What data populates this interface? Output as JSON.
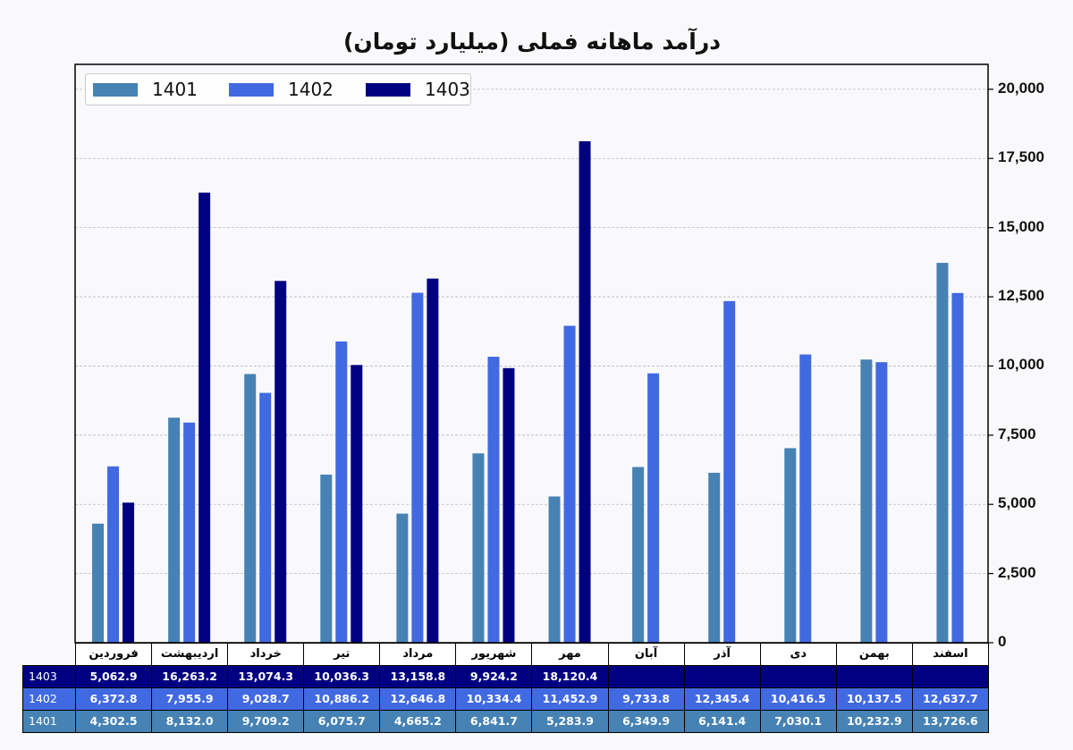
{
  "chart_data": {
    "type": "bar",
    "title": "درآمد ماهانه فملی (میلیارد تومان)",
    "categories": [
      "فروردین",
      "اردیبهشت",
      "خرداد",
      "تیر",
      "مرداد",
      "شهریور",
      "مهر",
      "آبان",
      "آذر",
      "دی",
      "بهمن",
      "اسفند"
    ],
    "series": [
      {
        "name": "1401",
        "color": "#4682b4",
        "values": [
          4302.5,
          8132.0,
          9709.2,
          6075.7,
          4665.2,
          6841.7,
          5283.9,
          6349.9,
          6141.4,
          7030.1,
          10232.9,
          13726.6
        ],
        "labels": [
          "4,302.5",
          "8,132.0",
          "9,709.2",
          "6,075.7",
          "4,665.2",
          "6,841.7",
          "5,283.9",
          "6,349.9",
          "6,141.4",
          "7,030.1",
          "10,232.9",
          "13,726.6"
        ]
      },
      {
        "name": "1402",
        "color": "#4169e1",
        "values": [
          6372.8,
          7955.9,
          9028.7,
          10886.2,
          12646.8,
          10334.4,
          11452.9,
          9733.8,
          12345.4,
          10416.5,
          10137.5,
          12637.7
        ],
        "labels": [
          "6,372.8",
          "7,955.9",
          "9,028.7",
          "10,886.2",
          "12,646.8",
          "10,334.4",
          "11,452.9",
          "9,733.8",
          "12,345.4",
          "10,416.5",
          "10,137.5",
          "12,637.7"
        ]
      },
      {
        "name": "1403",
        "color": "#000080",
        "values": [
          5062.9,
          16263.2,
          13074.3,
          10036.3,
          13158.8,
          9924.2,
          18120.4,
          null,
          null,
          null,
          null,
          null
        ],
        "labels": [
          "5,062.9",
          "16,263.2",
          "13,074.3",
          "10,036.3",
          "13,158.8",
          "9,924.2",
          "18,120.4",
          "",
          "",
          "",
          "",
          ""
        ]
      }
    ],
    "yticks": [
      0,
      2500,
      5000,
      7500,
      10000,
      12500,
      15000,
      17500,
      20000
    ],
    "ytick_labels": [
      "0",
      "2,500",
      "5,000",
      "7,500",
      "10,000",
      "12,500",
      "15,000",
      "17,500",
      "20,000"
    ],
    "ylim": [
      0,
      20900
    ],
    "yaxis_side": "right",
    "grid": true,
    "legend_position": "top-left",
    "table_row_order": [
      "1403",
      "1402",
      "1401"
    ]
  }
}
